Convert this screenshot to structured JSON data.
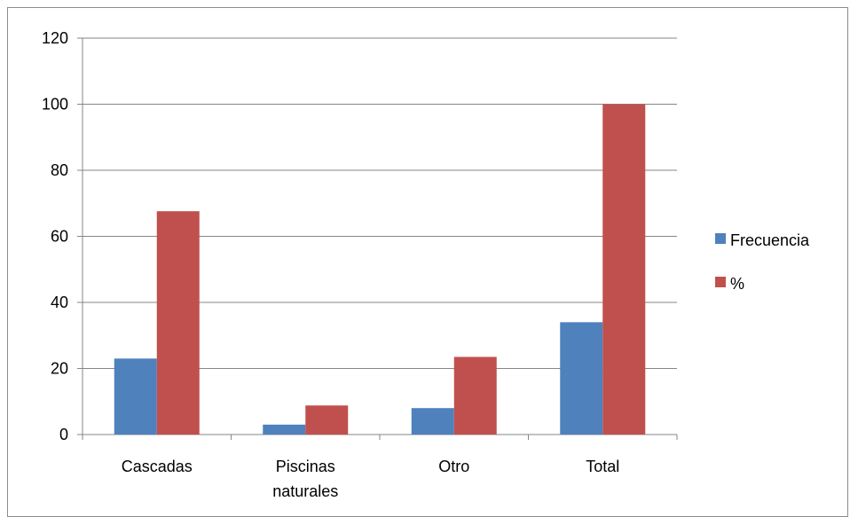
{
  "chart_data": {
    "type": "bar",
    "categories": [
      [
        "Cascadas"
      ],
      [
        "Piscinas",
        "naturales"
      ],
      [
        "Otro"
      ],
      [
        "Total"
      ]
    ],
    "series": [
      {
        "name": "Frecuencia",
        "color": "#4f81bd",
        "values": [
          23,
          3,
          8,
          34
        ]
      },
      {
        "name": "%",
        "color": "#c0504d",
        "values": [
          67.6,
          8.8,
          23.5,
          100
        ]
      }
    ],
    "ylim": [
      0,
      120
    ],
    "yticks": [
      0,
      20,
      40,
      60,
      80,
      100,
      120
    ],
    "grid": true,
    "legend_position": "right",
    "title": "",
    "xlabel": "",
    "ylabel": ""
  }
}
